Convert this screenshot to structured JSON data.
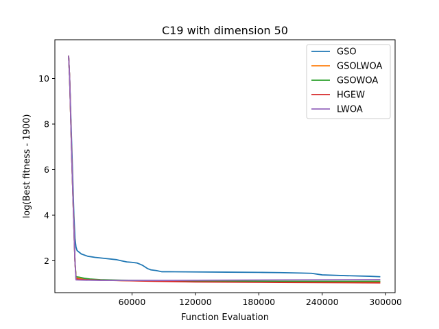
{
  "chart_data": {
    "type": "line",
    "title": "C19 with dimension 50",
    "xlabel": "Function Evaluation",
    "ylabel": "log(Best fitness - 1900)",
    "xlim": [
      -13000,
      309000
    ],
    "ylim": [
      0.6,
      11.7
    ],
    "xticks": [
      60000,
      120000,
      180000,
      240000,
      300000
    ],
    "yticks": [
      2,
      4,
      6,
      8,
      10
    ],
    "grid": false,
    "legend_position": "top-right",
    "series": [
      {
        "name": "GSO",
        "color": "#1f77b4",
        "x": [
          0,
          1000,
          3000,
          5000,
          6000,
          7000,
          8000,
          12000,
          18000,
          25000,
          35000,
          45000,
          50000,
          55000,
          60000,
          65000,
          70000,
          75000,
          78000,
          83000,
          88000,
          95000,
          120000,
          150000,
          180000,
          200000,
          220000,
          230000,
          240000,
          260000,
          285000,
          295000
        ],
        "y": [
          11.0,
          10.0,
          7.0,
          4.0,
          3.0,
          2.6,
          2.45,
          2.3,
          2.2,
          2.15,
          2.1,
          2.05,
          2.0,
          1.95,
          1.93,
          1.9,
          1.8,
          1.65,
          1.6,
          1.57,
          1.52,
          1.52,
          1.51,
          1.5,
          1.49,
          1.48,
          1.46,
          1.45,
          1.38,
          1.35,
          1.32,
          1.3
        ]
      },
      {
        "name": "GSOLWOA",
        "color": "#ff7f0e",
        "x": [
          0,
          1000,
          3000,
          5000,
          6000,
          7000,
          10000,
          20000,
          50000,
          100000,
          200000,
          295000
        ],
        "y": [
          11.0,
          10.0,
          6.5,
          3.5,
          2.0,
          1.25,
          1.22,
          1.18,
          1.13,
          1.1,
          1.08,
          1.08
        ]
      },
      {
        "name": "GSOWOA",
        "color": "#2ca02c",
        "x": [
          0,
          1000,
          3000,
          5000,
          6000,
          7000,
          10000,
          15000,
          20000,
          30000,
          50000,
          100000,
          200000,
          295000
        ],
        "y": [
          11.0,
          10.0,
          6.5,
          3.5,
          2.0,
          1.3,
          1.28,
          1.23,
          1.2,
          1.17,
          1.15,
          1.12,
          1.1,
          1.1
        ]
      },
      {
        "name": "HGEW",
        "color": "#d62728",
        "x": [
          0,
          1000,
          3000,
          5000,
          6000,
          7000,
          15000,
          30000,
          50000,
          80000,
          120000,
          200000,
          295000
        ],
        "y": [
          11.0,
          10.0,
          6.5,
          3.5,
          2.0,
          1.2,
          1.17,
          1.15,
          1.13,
          1.1,
          1.07,
          1.05,
          1.03
        ]
      },
      {
        "name": "LWOA",
        "color": "#9467bd",
        "x": [
          0,
          1000,
          3000,
          5000,
          6000,
          7000,
          15000,
          30000,
          50000,
          100000,
          200000,
          295000
        ],
        "y": [
          11.0,
          10.0,
          6.5,
          3.5,
          2.0,
          1.16,
          1.15,
          1.14,
          1.14,
          1.14,
          1.16,
          1.17
        ]
      }
    ]
  }
}
